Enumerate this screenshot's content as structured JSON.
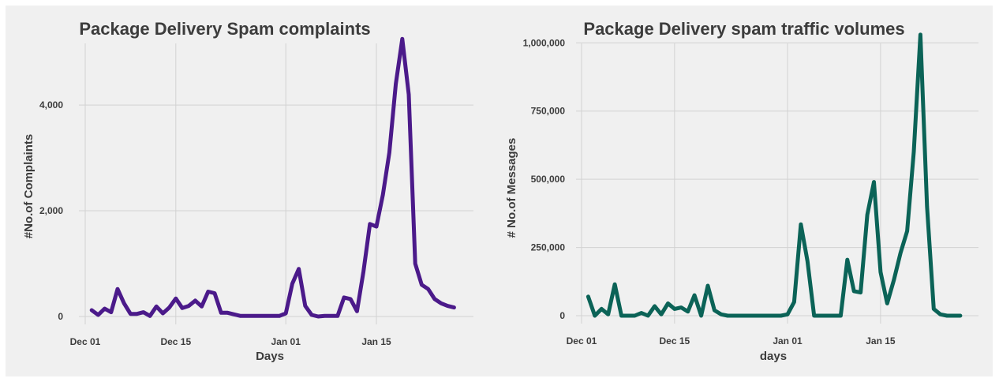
{
  "chart_data": [
    {
      "type": "line",
      "title": "Package Delivery Spam complaints",
      "xlabel": "Days",
      "ylabel": "#No.of Complaints",
      "x_start": "2021-12-02",
      "x_ticks": [
        "Dec 01",
        "Dec 15",
        "Jan 01",
        "Jan 15"
      ],
      "y_ticks": [
        "0",
        "2,000",
        "4,000"
      ],
      "y_tick_values": [
        0,
        2000,
        4000
      ],
      "ylim": [
        0,
        5300
      ],
      "grid": true,
      "color": "#4b1a8a",
      "values": [
        120,
        30,
        150,
        80,
        520,
        250,
        50,
        50,
        80,
        10,
        190,
        60,
        170,
        340,
        160,
        200,
        300,
        190,
        470,
        440,
        70,
        70,
        40,
        10,
        10,
        10,
        10,
        10,
        10,
        10,
        60,
        620,
        900,
        200,
        30,
        0,
        10,
        10,
        10,
        360,
        330,
        100,
        850,
        1750,
        1700,
        2300,
        3100,
        4400,
        5250,
        4200,
        1000,
        600,
        520,
        330,
        250,
        200,
        170
      ]
    },
    {
      "type": "line",
      "title": "Package Delivery spam traffic volumes",
      "xlabel": "days",
      "ylabel": "# No.of Messages",
      "x_start": "2021-12-02",
      "x_ticks": [
        "Dec 01",
        "Dec 15",
        "Jan 01",
        "Jan 15"
      ],
      "y_ticks": [
        "0",
        "250,000",
        "500,000",
        "750,000",
        "1,000,000"
      ],
      "y_tick_values": [
        0,
        250000,
        500000,
        750000,
        1000000
      ],
      "ylim": [
        0,
        1050000
      ],
      "grid": true,
      "color": "#0b6357",
      "values": [
        70000,
        0,
        25000,
        5000,
        115000,
        0,
        0,
        0,
        10000,
        0,
        35000,
        5000,
        45000,
        25000,
        30000,
        15000,
        75000,
        0,
        110000,
        20000,
        5000,
        0,
        0,
        0,
        0,
        0,
        0,
        0,
        0,
        0,
        5000,
        50000,
        335000,
        200000,
        0,
        0,
        0,
        0,
        0,
        205000,
        90000,
        85000,
        370000,
        490000,
        160000,
        45000,
        130000,
        230000,
        310000,
        600000,
        1030000,
        400000,
        25000,
        5000,
        0,
        0,
        0
      ]
    }
  ]
}
